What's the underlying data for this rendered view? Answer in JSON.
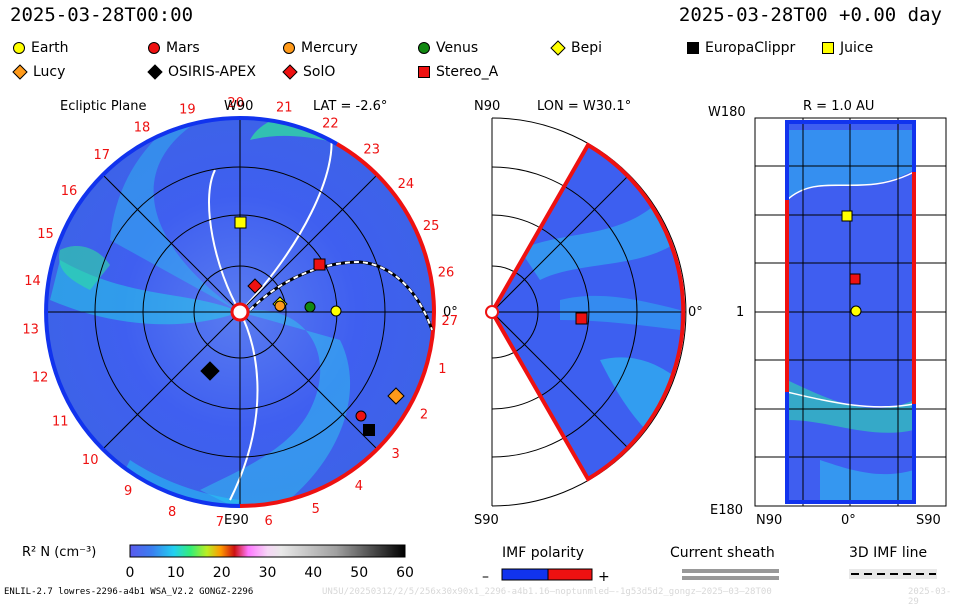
{
  "header": {
    "datetime": "2025-03-28T00:00",
    "offset": "2025-03-28T00 +0.00 day"
  },
  "legend": [
    {
      "name": "Earth",
      "shape": "circle",
      "color": "#ffff00"
    },
    {
      "name": "Mars",
      "shape": "circle",
      "color": "#ee1111"
    },
    {
      "name": "Mercury",
      "shape": "circle",
      "color": "#ff9a1a"
    },
    {
      "name": "Venus",
      "shape": "circle",
      "color": "#118811"
    },
    {
      "name": "Bepi",
      "shape": "diamond",
      "color": "#ffff00"
    },
    {
      "name": "EuropaClippr",
      "shape": "square",
      "color": "#000000"
    },
    {
      "name": "Juice",
      "shape": "square",
      "color": "#ffff00"
    },
    {
      "name": "Lucy",
      "shape": "diamond",
      "color": "#ff9a1a"
    },
    {
      "name": "OSIRIS-APEX",
      "shape": "diamond",
      "color": "#000000"
    },
    {
      "name": "SolO",
      "shape": "diamond",
      "color": "#ee1111"
    },
    {
      "name": "Stereo_A",
      "shape": "square",
      "color": "#ee1111"
    }
  ],
  "panel1": {
    "title": "Ecliptic Plane",
    "lat": "LAT = -2.6°",
    "top_label": "W90",
    "bottom_label": "E90",
    "right_label": "0°",
    "ticks": [
      "19",
      "20",
      "21",
      "22",
      "23",
      "24",
      "25",
      "26",
      "27",
      "1",
      "2",
      "3",
      "4",
      "5",
      "6",
      "7",
      "8",
      "9",
      "10",
      "11",
      "12",
      "13",
      "14",
      "15",
      "16",
      "17",
      "18"
    ]
  },
  "panel2": {
    "lon": "LON = W30.1°",
    "top_label": "N90",
    "bottom_label": "S90",
    "right_label": "0°"
  },
  "panel3": {
    "r": "R = 1.0 AU",
    "top_left": "W180",
    "mid_left": "1",
    "bottom_left": "E180",
    "x_left": "N90",
    "x_mid": "0°",
    "x_right": "S90"
  },
  "colorbar": {
    "label": "R² N (cm⁻³)",
    "ticks": [
      "0",
      "10",
      "20",
      "30",
      "40",
      "50",
      "60"
    ]
  },
  "imf": {
    "title": "IMF polarity",
    "minus": "–",
    "plus": "+"
  },
  "sheath": {
    "title": "Current sheath"
  },
  "imf3d": {
    "title": "3D IMF line"
  },
  "footer": {
    "left": "ENLIL-2.7 lowres-2296-a4b1 WSA_V2.2 GONGZ-2296",
    "watermark": "UN5U/20250312/2/5/256x30x90x1_2296-a4b1.16—noptunmled—-1g53d5d2_gongz—2025—03—28T00",
    "right": "2025-03-29"
  },
  "colors": {
    "accent_red": "#ee1111",
    "accent_blue": "#1133ee"
  }
}
